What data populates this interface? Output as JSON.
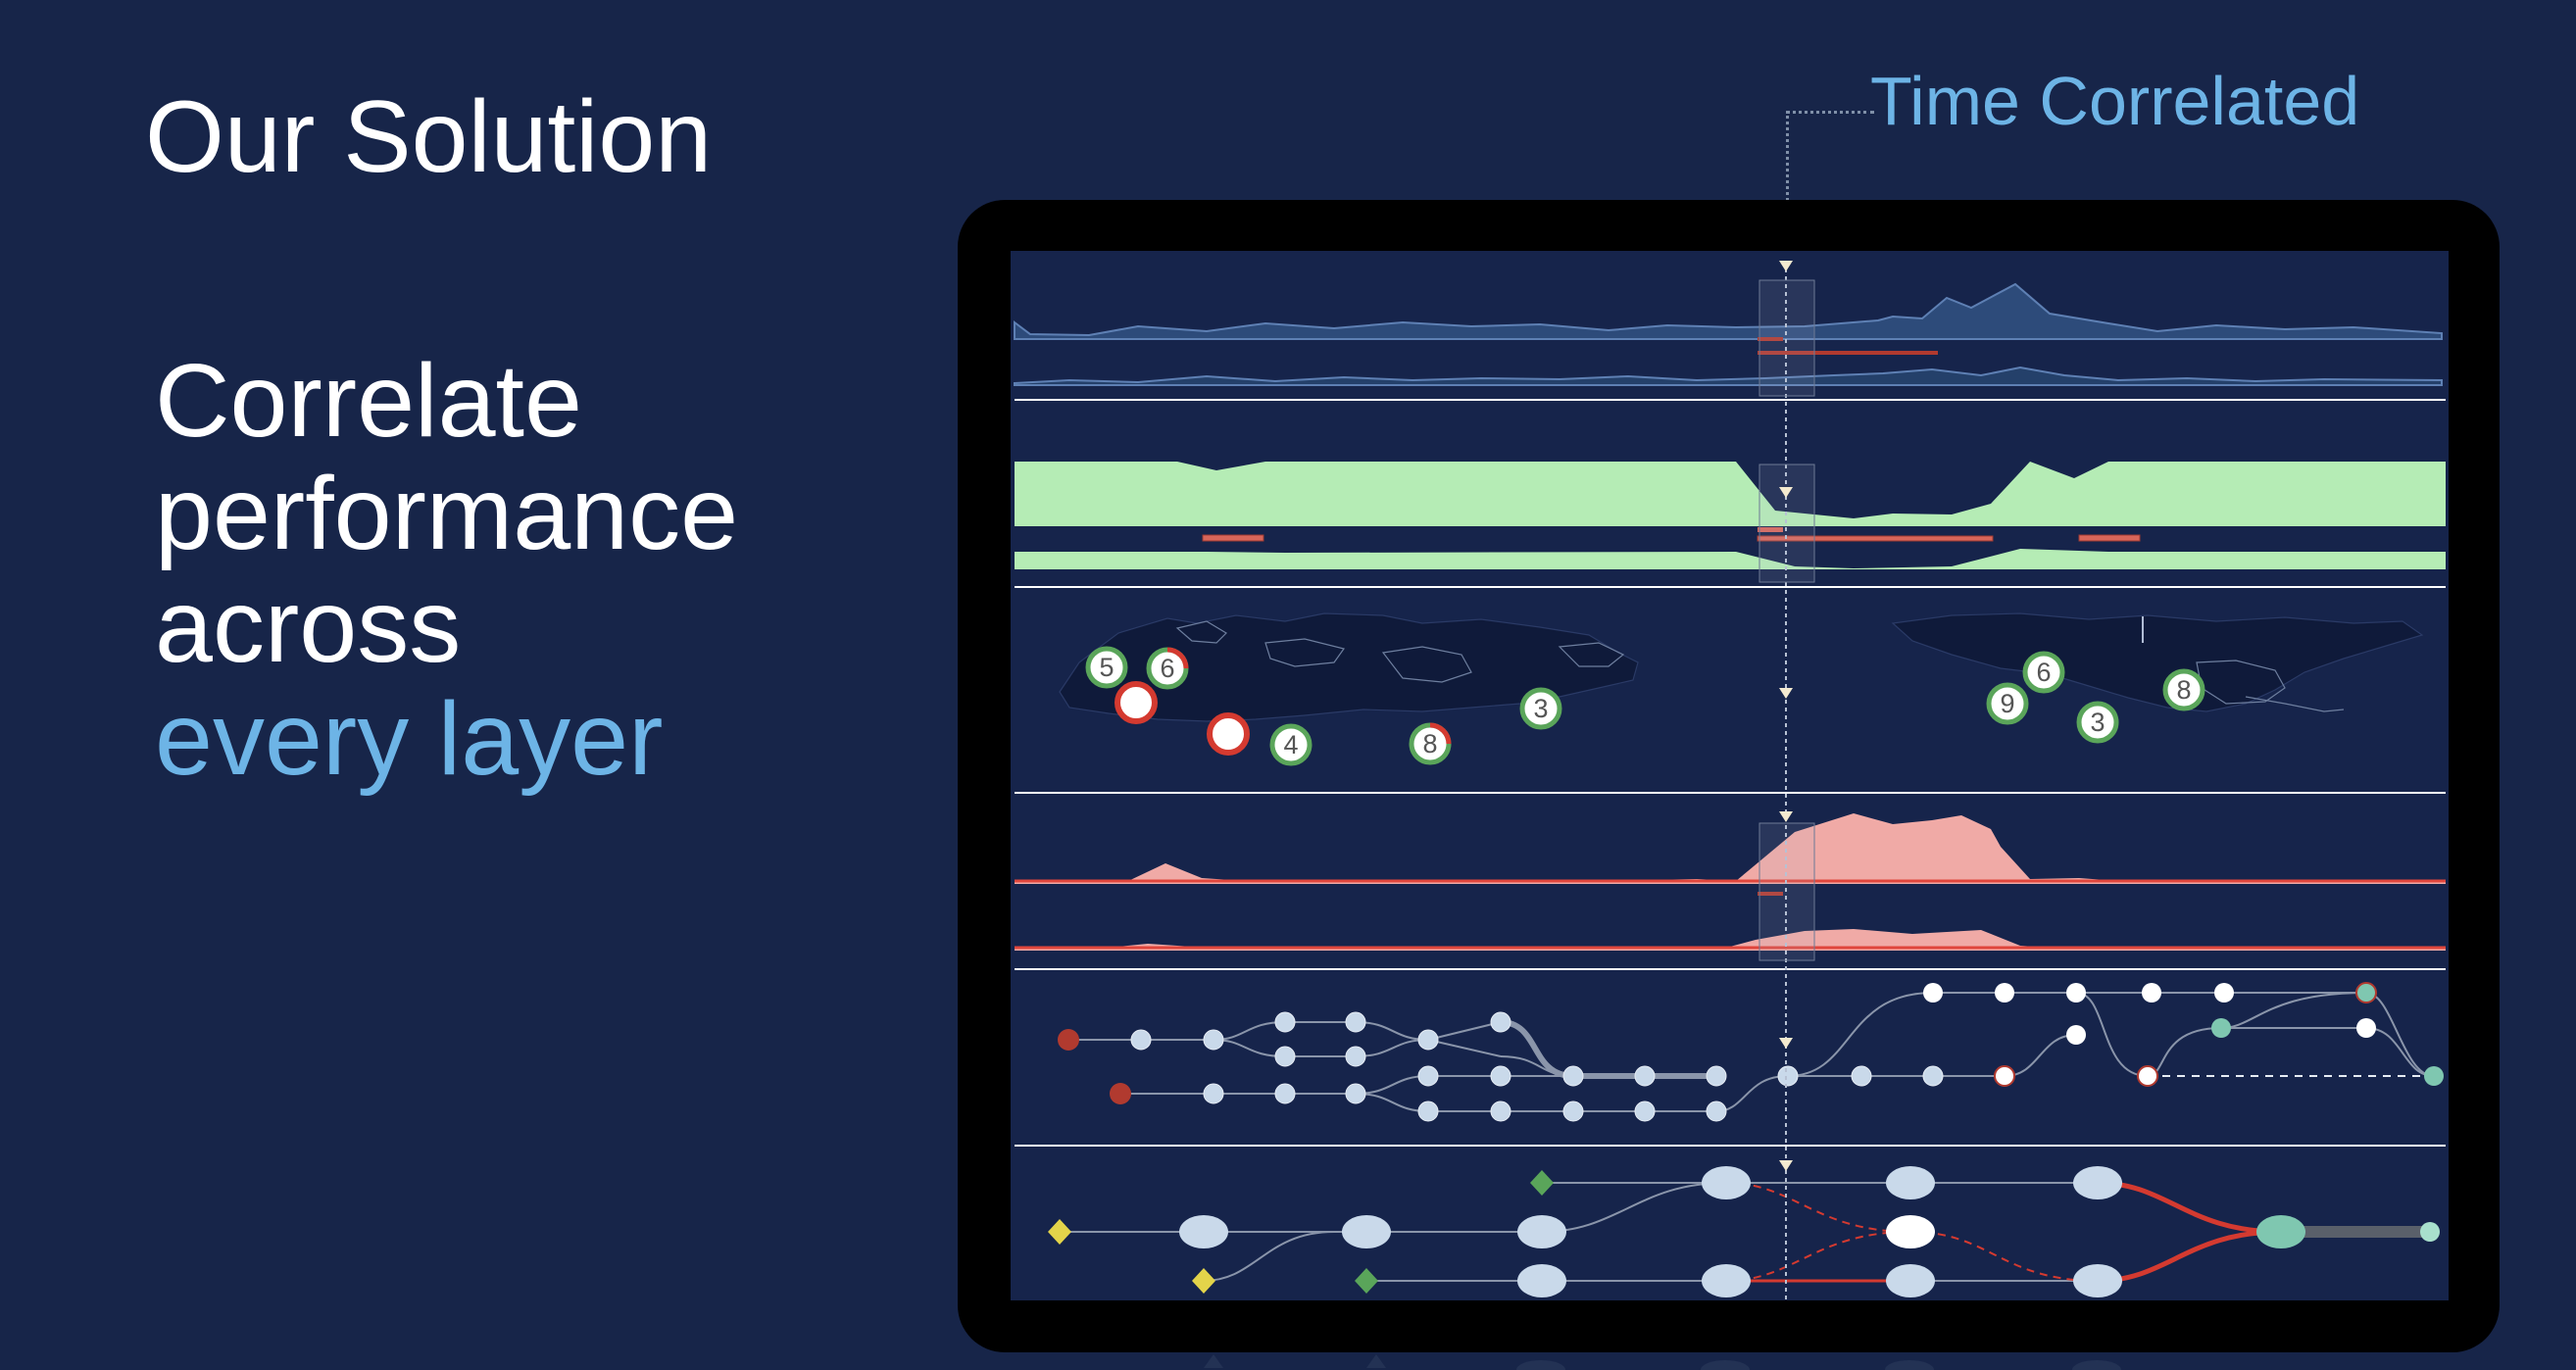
{
  "slide": {
    "title": "Our Solution",
    "headline": {
      "lines": [
        "Correlate",
        "performance",
        "across"
      ],
      "accent": "every layer"
    },
    "callout": "Time Correlated"
  },
  "colors": {
    "background": "#172549",
    "accent": "#6db4e6",
    "green_fill": "#b5ecb5",
    "red_fill": "#f0aaa6",
    "red_line": "#e0463c",
    "node": "#c9d9ea",
    "teal_node": "#7fc7b0",
    "dark_red_node": "#b13a2f",
    "diamond_green": "#5aa55a",
    "diamond_yellow": "#e3d44a"
  },
  "map_markers": {
    "europe_asia": [
      "5",
      "6",
      "4",
      "8",
      "3"
    ],
    "americas": [
      "6",
      "9",
      "3",
      "8"
    ]
  },
  "icons": [
    "time-marker-icon",
    "world-map-icon"
  ]
}
